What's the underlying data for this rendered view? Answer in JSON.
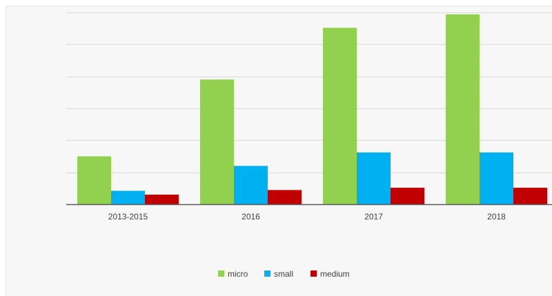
{
  "chart_data": {
    "type": "bar",
    "categories": [
      "2013-2015",
      "2016",
      "2017",
      "2018"
    ],
    "series": [
      {
        "name": "micro",
        "values": [
          12.5,
          32.5,
          46,
          49.5
        ],
        "color": "#92d050"
      },
      {
        "name": "small",
        "values": [
          3.5,
          10,
          13.5,
          13.5
        ],
        "color": "#00b0f0"
      },
      {
        "name": "medium",
        "values": [
          2.5,
          3.7,
          4.3,
          4.3
        ],
        "color": "#c00000"
      }
    ],
    "ylim": [
      0,
      50
    ],
    "grid": true,
    "legend_position": "bottom"
  }
}
